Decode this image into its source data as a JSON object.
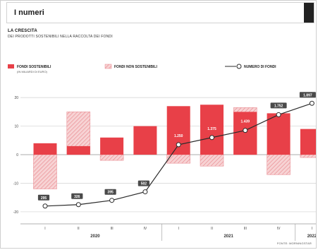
{
  "header": {
    "title": "I numeri"
  },
  "chart_heading": "LA CRESCITA",
  "chart_subheading": "DEI PRODOTTI SOSTENIBILI NELLA RACCOLTA DEI FONDI",
  "source_note": "FONTE: MORNINGSTAR",
  "colors": {
    "sustainable": "#e84048",
    "non_sustainable_fill": "#f7d3d4",
    "non_sustainable_hatch": "#e8838a",
    "line": "#2b2b2b",
    "grid": "#d8d8d8",
    "label_bg": "#4a4a4a"
  },
  "chart_data": {
    "type": "bar",
    "legend_position": "top",
    "legend": {
      "sustainable": "FONDI SOSTENIBILI",
      "sustainable_unit": "(IN MILIARDI DI EURO)",
      "non_sustainable": "FONDI NON SOSTENIBILI",
      "count_series": "NUMERO DI FONDI"
    },
    "categories": [
      "I",
      "II",
      "III",
      "IV",
      "I",
      "II",
      "III",
      "IV",
      "I"
    ],
    "year_groups": [
      {
        "label": "2020",
        "count": 4
      },
      {
        "label": "2021",
        "count": 4
      },
      {
        "label": "2022",
        "count": 1
      }
    ],
    "yticks": [
      20,
      10,
      0,
      -10,
      -20
    ],
    "ylim": [
      -23,
      24
    ],
    "series": [
      {
        "name": "FONDI SOSTENIBILI",
        "values": [
          4,
          3,
          6,
          10,
          17,
          17.5,
          15,
          14.5,
          9
        ]
      },
      {
        "name": "FONDI NON SOSTENIBILI",
        "values": [
          -12,
          15,
          -2,
          0,
          -3,
          -4,
          16.5,
          -7,
          -1
        ]
      }
    ],
    "count_line": {
      "name": "NUMERO DI FONDI",
      "labels": [
        "295",
        "326",
        "395",
        "502",
        "1.250",
        "1.375",
        "1.439",
        "1.752",
        "1.897"
      ],
      "plot_y": [
        -18,
        -17.5,
        -16,
        -13,
        3.5,
        6,
        8.5,
        14,
        18
      ]
    }
  }
}
